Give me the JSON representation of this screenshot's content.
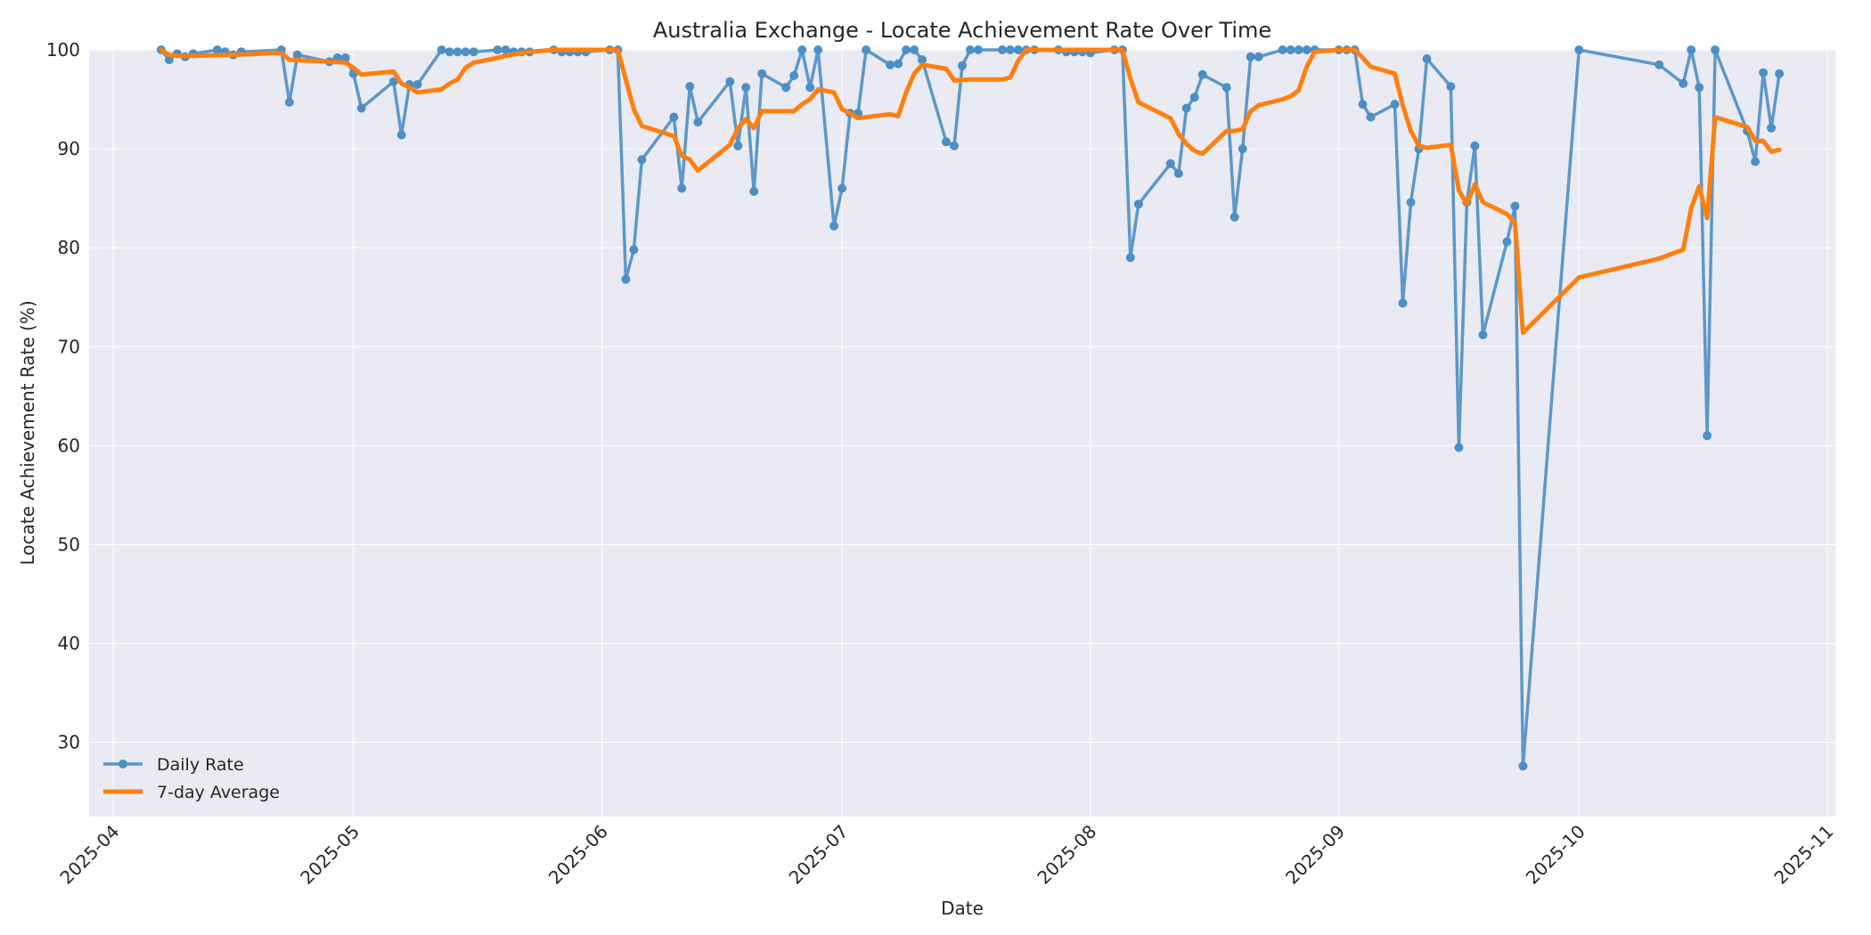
{
  "chart_data": {
    "type": "line",
    "title": "Australia Exchange - Locate Achievement Rate Over Time",
    "xlabel": "Date",
    "ylabel": "Locate Achievement Rate (%)",
    "xlim": [
      "2025-03-29",
      "2025-11-02"
    ],
    "ylim": [
      22.5,
      100
    ],
    "xticks": [
      "2025-04",
      "2025-05",
      "2025-06",
      "2025-07",
      "2025-08",
      "2025-09",
      "2025-10",
      "2025-11"
    ],
    "yticks": [
      30,
      40,
      50,
      60,
      70,
      80,
      90,
      100
    ],
    "grid": true,
    "legend_position": "lower-left",
    "colors": {
      "daily": "#4c8fc4",
      "avg": "#ff7f0e",
      "plot_bg": "#eaeaf2",
      "grid": "#ffffff"
    },
    "series": [
      {
        "name": "Daily Rate",
        "marker": "circle",
        "points": [
          [
            "2025-04-07",
            100
          ],
          [
            "2025-04-08",
            99
          ],
          [
            "2025-04-09",
            99.6
          ],
          [
            "2025-04-10",
            99.3
          ],
          [
            "2025-04-11",
            99.6
          ],
          [
            "2025-04-14",
            100
          ],
          [
            "2025-04-15",
            99.8
          ],
          [
            "2025-04-16",
            99.5
          ],
          [
            "2025-04-17",
            99.8
          ],
          [
            "2025-04-22",
            100
          ],
          [
            "2025-04-23",
            94.7
          ],
          [
            "2025-04-24",
            99.5
          ],
          [
            "2025-04-28",
            98.8
          ],
          [
            "2025-04-29",
            99.2
          ],
          [
            "2025-04-30",
            99.2
          ],
          [
            "2025-05-01",
            97.6
          ],
          [
            "2025-05-02",
            94.1
          ],
          [
            "2025-05-06",
            96.8
          ],
          [
            "2025-05-07",
            91.4
          ],
          [
            "2025-05-08",
            96.5
          ],
          [
            "2025-05-09",
            96.5
          ],
          [
            "2025-05-12",
            100
          ],
          [
            "2025-05-13",
            99.8
          ],
          [
            "2025-05-14",
            99.8
          ],
          [
            "2025-05-15",
            99.8
          ],
          [
            "2025-05-16",
            99.8
          ],
          [
            "2025-05-19",
            100
          ],
          [
            "2025-05-20",
            100
          ],
          [
            "2025-05-21",
            99.8
          ],
          [
            "2025-05-22",
            99.8
          ],
          [
            "2025-05-23",
            99.8
          ],
          [
            "2025-05-26",
            100
          ],
          [
            "2025-05-27",
            99.8
          ],
          [
            "2025-05-28",
            99.8
          ],
          [
            "2025-05-29",
            99.8
          ],
          [
            "2025-05-30",
            99.8
          ],
          [
            "2025-06-02",
            100
          ],
          [
            "2025-06-03",
            100
          ],
          [
            "2025-06-04",
            76.8
          ],
          [
            "2025-06-05",
            79.8
          ],
          [
            "2025-06-06",
            88.9
          ],
          [
            "2025-06-10",
            93.2
          ],
          [
            "2025-06-11",
            86
          ],
          [
            "2025-06-12",
            96.3
          ],
          [
            "2025-06-13",
            92.7
          ],
          [
            "2025-06-17",
            96.8
          ],
          [
            "2025-06-18",
            90.3
          ],
          [
            "2025-06-19",
            96.2
          ],
          [
            "2025-06-20",
            85.7
          ],
          [
            "2025-06-21",
            97.6
          ],
          [
            "2025-06-24",
            96.2
          ],
          [
            "2025-06-25",
            97.4
          ],
          [
            "2025-06-26",
            100
          ],
          [
            "2025-06-27",
            96.2
          ],
          [
            "2025-06-28",
            100
          ],
          [
            "2025-06-30",
            82.2
          ],
          [
            "2025-07-01",
            86
          ],
          [
            "2025-07-02",
            93.6
          ],
          [
            "2025-07-03",
            93.6
          ],
          [
            "2025-07-04",
            100
          ],
          [
            "2025-07-07",
            98.5
          ],
          [
            "2025-07-08",
            98.6
          ],
          [
            "2025-07-09",
            100
          ],
          [
            "2025-07-10",
            100
          ],
          [
            "2025-07-11",
            99
          ],
          [
            "2025-07-14",
            90.7
          ],
          [
            "2025-07-15",
            90.3
          ],
          [
            "2025-07-16",
            98.4
          ],
          [
            "2025-07-17",
            100
          ],
          [
            "2025-07-18",
            100
          ],
          [
            "2025-07-21",
            100
          ],
          [
            "2025-07-22",
            100
          ],
          [
            "2025-07-23",
            100
          ],
          [
            "2025-07-24",
            100
          ],
          [
            "2025-07-25",
            100
          ],
          [
            "2025-07-28",
            100
          ],
          [
            "2025-07-29",
            99.8
          ],
          [
            "2025-07-30",
            99.8
          ],
          [
            "2025-07-31",
            99.8
          ],
          [
            "2025-08-01",
            99.7
          ],
          [
            "2025-08-04",
            100
          ],
          [
            "2025-08-05",
            100
          ],
          [
            "2025-08-06",
            79
          ],
          [
            "2025-08-07",
            84.4
          ],
          [
            "2025-08-11",
            88.5
          ],
          [
            "2025-08-12",
            87.5
          ],
          [
            "2025-08-13",
            94.1
          ],
          [
            "2025-08-14",
            95.2
          ],
          [
            "2025-08-15",
            97.5
          ],
          [
            "2025-08-18",
            96.2
          ],
          [
            "2025-08-19",
            83.1
          ],
          [
            "2025-08-20",
            90
          ],
          [
            "2025-08-21",
            99.3
          ],
          [
            "2025-08-22",
            99.3
          ],
          [
            "2025-08-25",
            100
          ],
          [
            "2025-08-26",
            100
          ],
          [
            "2025-08-27",
            100
          ],
          [
            "2025-08-28",
            100
          ],
          [
            "2025-08-29",
            100
          ],
          [
            "2025-09-01",
            100
          ],
          [
            "2025-09-02",
            100
          ],
          [
            "2025-09-03",
            100
          ],
          [
            "2025-09-04",
            94.5
          ],
          [
            "2025-09-05",
            93.2
          ],
          [
            "2025-09-08",
            94.5
          ],
          [
            "2025-09-09",
            74.4
          ],
          [
            "2025-09-10",
            84.6
          ],
          [
            "2025-09-11",
            90
          ],
          [
            "2025-09-12",
            99.1
          ],
          [
            "2025-09-15",
            96.3
          ],
          [
            "2025-09-16",
            59.8
          ],
          [
            "2025-09-17",
            84.6
          ],
          [
            "2025-09-18",
            90.3
          ],
          [
            "2025-09-19",
            71.2
          ],
          [
            "2025-09-22",
            80.6
          ],
          [
            "2025-09-23",
            84.2
          ],
          [
            "2025-09-24",
            27.6
          ],
          [
            "2025-10-01",
            100
          ],
          [
            "2025-10-11",
            98.5
          ],
          [
            "2025-10-14",
            96.6
          ],
          [
            "2025-10-15",
            100
          ],
          [
            "2025-10-16",
            96.2
          ],
          [
            "2025-10-17",
            61
          ],
          [
            "2025-10-18",
            100
          ],
          [
            "2025-10-22",
            91.8
          ],
          [
            "2025-10-23",
            88.7
          ],
          [
            "2025-10-24",
            97.7
          ],
          [
            "2025-10-25",
            92.1
          ],
          [
            "2025-10-26",
            97.6
          ]
        ]
      },
      {
        "name": "7-day Average",
        "marker": "none",
        "points": [
          [
            "2025-04-07",
            100
          ],
          [
            "2025-04-08",
            99.5
          ],
          [
            "2025-04-09",
            99.4
          ],
          [
            "2025-04-11",
            99.4
          ],
          [
            "2025-04-16",
            99.5
          ],
          [
            "2025-04-22",
            99.7
          ],
          [
            "2025-04-23",
            99
          ],
          [
            "2025-04-28",
            98.8
          ],
          [
            "2025-04-30",
            98.7
          ],
          [
            "2025-05-01",
            98.2
          ],
          [
            "2025-05-02",
            97.5
          ],
          [
            "2025-05-06",
            97.8
          ],
          [
            "2025-05-07",
            96.6
          ],
          [
            "2025-05-08",
            96.2
          ],
          [
            "2025-05-09",
            95.7
          ],
          [
            "2025-05-12",
            96
          ],
          [
            "2025-05-13",
            96.6
          ],
          [
            "2025-05-14",
            97
          ],
          [
            "2025-05-15",
            98.2
          ],
          [
            "2025-05-16",
            98.7
          ],
          [
            "2025-05-19",
            99.2
          ],
          [
            "2025-05-20",
            99.4
          ],
          [
            "2025-05-23",
            99.8
          ],
          [
            "2025-05-26",
            100
          ],
          [
            "2025-06-03",
            100
          ],
          [
            "2025-06-05",
            94
          ],
          [
            "2025-06-06",
            92.3
          ],
          [
            "2025-06-10",
            91.3
          ],
          [
            "2025-06-11",
            89.3
          ],
          [
            "2025-06-12",
            88.9
          ],
          [
            "2025-06-13",
            87.8
          ],
          [
            "2025-06-17",
            90.4
          ],
          [
            "2025-06-18",
            92.1
          ],
          [
            "2025-06-19",
            93
          ],
          [
            "2025-06-20",
            92.1
          ],
          [
            "2025-06-21",
            93.8
          ],
          [
            "2025-06-25",
            93.8
          ],
          [
            "2025-06-26",
            94.5
          ],
          [
            "2025-06-27",
            95
          ],
          [
            "2025-06-28",
            96
          ],
          [
            "2025-06-30",
            95.7
          ],
          [
            "2025-07-01",
            94
          ],
          [
            "2025-07-02",
            93.6
          ],
          [
            "2025-07-03",
            93.1
          ],
          [
            "2025-07-07",
            93.5
          ],
          [
            "2025-07-08",
            93.3
          ],
          [
            "2025-07-09",
            95.7
          ],
          [
            "2025-07-10",
            97.6
          ],
          [
            "2025-07-11",
            98.5
          ],
          [
            "2025-07-14",
            98.1
          ],
          [
            "2025-07-15",
            96.9
          ],
          [
            "2025-07-17",
            97
          ],
          [
            "2025-07-21",
            97
          ],
          [
            "2025-07-22",
            97.2
          ],
          [
            "2025-07-23",
            98.9
          ],
          [
            "2025-07-24",
            100
          ],
          [
            "2025-08-05",
            100
          ],
          [
            "2025-08-06",
            97.1
          ],
          [
            "2025-08-07",
            94.7
          ],
          [
            "2025-08-11",
            93.1
          ],
          [
            "2025-08-12",
            91.5
          ],
          [
            "2025-08-13",
            90.5
          ],
          [
            "2025-08-14",
            89.8
          ],
          [
            "2025-08-15",
            89.5
          ],
          [
            "2025-08-18",
            91.8
          ],
          [
            "2025-08-19",
            91.8
          ],
          [
            "2025-08-20",
            92
          ],
          [
            "2025-08-21",
            93.8
          ],
          [
            "2025-08-22",
            94.4
          ],
          [
            "2025-08-25",
            95
          ],
          [
            "2025-08-26",
            95.3
          ],
          [
            "2025-08-27",
            95.9
          ],
          [
            "2025-08-28",
            98.3
          ],
          [
            "2025-08-29",
            99.8
          ],
          [
            "2025-09-01",
            100
          ],
          [
            "2025-09-03",
            100
          ],
          [
            "2025-09-04",
            99.2
          ],
          [
            "2025-09-05",
            98.3
          ],
          [
            "2025-09-08",
            97.6
          ],
          [
            "2025-09-09",
            94.4
          ],
          [
            "2025-09-10",
            91.8
          ],
          [
            "2025-09-11",
            90.3
          ],
          [
            "2025-09-12",
            90.1
          ],
          [
            "2025-09-15",
            90.4
          ],
          [
            "2025-09-16",
            85.8
          ],
          [
            "2025-09-17",
            84.4
          ],
          [
            "2025-09-18",
            86.4
          ],
          [
            "2025-09-19",
            84.6
          ],
          [
            "2025-09-22",
            83.4
          ],
          [
            "2025-09-23",
            82.5
          ],
          [
            "2025-09-24",
            71.4
          ],
          [
            "2025-10-01",
            77
          ],
          [
            "2025-10-11",
            78.9
          ],
          [
            "2025-10-14",
            79.8
          ],
          [
            "2025-10-15",
            84
          ],
          [
            "2025-10-16",
            86.2
          ],
          [
            "2025-10-17",
            83
          ],
          [
            "2025-10-18",
            93.2
          ],
          [
            "2025-10-22",
            92.2
          ],
          [
            "2025-10-23",
            90.8
          ],
          [
            "2025-10-24",
            90.8
          ],
          [
            "2025-10-25",
            89.7
          ],
          [
            "2025-10-26",
            89.9
          ]
        ]
      }
    ]
  }
}
